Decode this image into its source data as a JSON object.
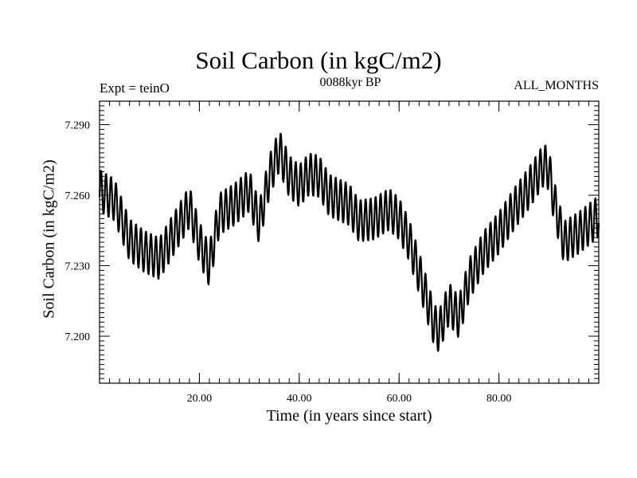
{
  "chart_data": {
    "type": "line",
    "title": "Soil Carbon (in kgC/m2)",
    "subtitle": "0088kyr BP",
    "annotation_left": "Expt = teinO",
    "annotation_right": "ALL_MONTHS",
    "xlabel": "Time (in years since start)",
    "ylabel": "Soil Carbon (in kgC/m2)",
    "xlim": [
      0,
      100
    ],
    "ylim": [
      7.18,
      7.3
    ],
    "x_ticks": [
      20,
      40,
      60,
      80
    ],
    "x_tick_labels": [
      "20.00",
      "40.00",
      "60.00",
      "80.00"
    ],
    "y_ticks": [
      7.2,
      7.23,
      7.26,
      7.29
    ],
    "y_tick_labels": [
      "7.200",
      "7.230",
      "7.260",
      "7.290"
    ],
    "seasonal_amplitude": 0.009,
    "series": [
      {
        "name": "Soil Carbon",
        "trend": [
          [
            0,
            7.262
          ],
          [
            3,
            7.258
          ],
          [
            6,
            7.241
          ],
          [
            9,
            7.236
          ],
          [
            12,
            7.233
          ],
          [
            15,
            7.244
          ],
          [
            18,
            7.255
          ],
          [
            20,
            7.24
          ],
          [
            22,
            7.23
          ],
          [
            24,
            7.252
          ],
          [
            27,
            7.256
          ],
          [
            30,
            7.262
          ],
          [
            32,
            7.248
          ],
          [
            34,
            7.268
          ],
          [
            36,
            7.279
          ],
          [
            38,
            7.268
          ],
          [
            40,
            7.264
          ],
          [
            42,
            7.269
          ],
          [
            44,
            7.268
          ],
          [
            46,
            7.26
          ],
          [
            48,
            7.258
          ],
          [
            50,
            7.256
          ],
          [
            52,
            7.249
          ],
          [
            55,
            7.25
          ],
          [
            58,
            7.254
          ],
          [
            60,
            7.25
          ],
          [
            62,
            7.241
          ],
          [
            65,
            7.22
          ],
          [
            67,
            7.205
          ],
          [
            68,
            7.202
          ],
          [
            70,
            7.214
          ],
          [
            72,
            7.208
          ],
          [
            74,
            7.224
          ],
          [
            77,
            7.236
          ],
          [
            80,
            7.244
          ],
          [
            83,
            7.254
          ],
          [
            86,
            7.263
          ],
          [
            89,
            7.273
          ],
          [
            90,
            7.271
          ],
          [
            91,
            7.258
          ],
          [
            93,
            7.24
          ],
          [
            96,
            7.244
          ],
          [
            100,
            7.251
          ]
        ]
      }
    ]
  }
}
